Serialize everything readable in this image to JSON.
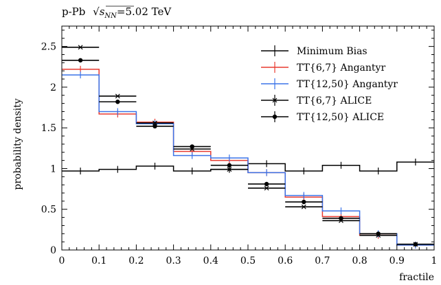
{
  "chart_data": {
    "type": "line",
    "title_prefix": "p-Pb",
    "title_math_sqrt": "s",
    "title_math_sub": "NN",
    "title_suffix": "=5.02 TeV",
    "xlabel": "fractile",
    "ylabel": "probability density",
    "xlim": [
      0,
      1
    ],
    "ylim": [
      0,
      2.75
    ],
    "x_ticks": [
      0,
      0.1,
      0.2,
      0.3,
      0.4,
      0.5,
      0.6,
      0.7,
      0.8,
      0.9,
      1
    ],
    "x_tick_labels": [
      "0",
      "0.1",
      "0.2",
      "0.3",
      "0.4",
      "0.5",
      "0.6",
      "0.7",
      "0.8",
      "0.9",
      "1"
    ],
    "y_ticks": [
      0,
      0.5,
      1,
      1.5,
      2,
      2.5
    ],
    "y_tick_labels": [
      "0",
      "0.5",
      "1",
      "1.5",
      "2",
      "2.5"
    ],
    "legend_position": "top-right",
    "bin_edges": [
      0,
      0.1,
      0.2,
      0.3,
      0.4,
      0.5,
      0.6,
      0.7,
      0.8,
      0.9,
      1.0
    ],
    "series": [
      {
        "name": "Minimum Bias",
        "style": "histogram",
        "color": "#000000",
        "values": [
          0.97,
          0.99,
          1.03,
          0.97,
          0.99,
          1.06,
          0.97,
          1.04,
          0.97,
          1.08
        ]
      },
      {
        "name": "TT{6,7} Angantyr",
        "style": "histogram",
        "color": "#e8392f",
        "values": [
          2.22,
          1.67,
          1.57,
          1.21,
          1.1,
          0.95,
          0.65,
          0.41,
          0.18,
          0.06
        ]
      },
      {
        "name": "TT{12,50} Angantyr",
        "style": "histogram",
        "color": "#3a73e8",
        "values": [
          2.15,
          1.7,
          1.55,
          1.16,
          1.13,
          0.95,
          0.67,
          0.48,
          0.2,
          0.06
        ]
      },
      {
        "name": "TT{6,7} ALICE",
        "style": "cross",
        "color": "#000000",
        "values": [
          2.49,
          1.89,
          1.56,
          1.24,
          0.99,
          0.76,
          0.53,
          0.36,
          0.18,
          0.07
        ]
      },
      {
        "name": "TT{12,50} ALICE",
        "style": "dot",
        "color": "#000000",
        "values": [
          2.33,
          1.82,
          1.52,
          1.27,
          1.04,
          0.81,
          0.59,
          0.39,
          0.2,
          0.07
        ]
      }
    ]
  }
}
